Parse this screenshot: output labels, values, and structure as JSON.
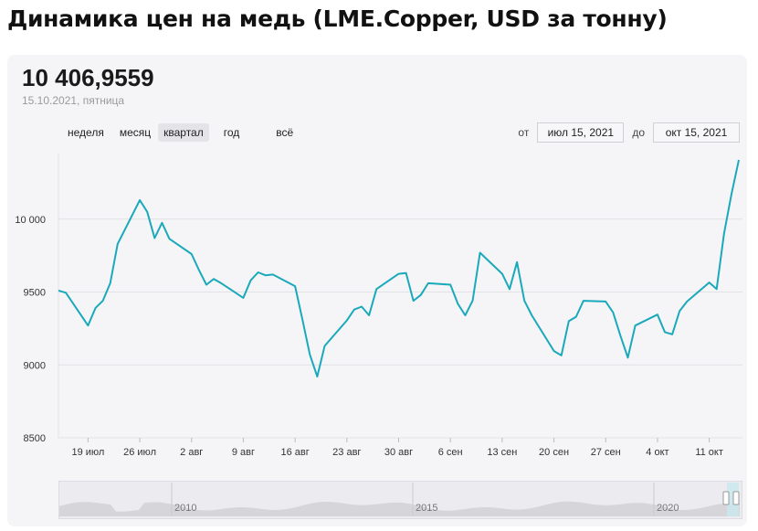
{
  "page": {
    "title": "Динамика цен на медь (LME.Copper, USD за тонну)"
  },
  "header": {
    "price": "10 406,9559",
    "date": "15.10.2021, пятница"
  },
  "tabs": [
    {
      "label": "неделя",
      "active": false
    },
    {
      "label": "месяц",
      "active": false
    },
    {
      "label": "квартал",
      "active": true
    },
    {
      "label": "год",
      "active": false
    },
    {
      "label": "всё",
      "active": false
    }
  ],
  "range": {
    "from_label": "от",
    "from_value": "июл 15, 2021",
    "to_label": "до",
    "to_value": "окт 15, 2021"
  },
  "navigator": {
    "year_labels": [
      "2010",
      "2015",
      "2020"
    ]
  },
  "colors": {
    "line": "#1aa9bb",
    "grid": "#e2e2e6",
    "navigator_fill": "#d6d6da"
  },
  "chart_data": {
    "type": "line",
    "title": "",
    "xlabel": "",
    "ylabel": "",
    "ylim": [
      8500,
      10450
    ],
    "yticks": [
      8500,
      9000,
      9500,
      10000
    ],
    "ytick_labels": [
      "8500",
      "9000",
      "9500",
      "10 000"
    ],
    "x_start": "2021-07-15",
    "x_end": "2021-10-15",
    "xticks": [
      {
        "date": "2021-07-19",
        "label": "19 июл"
      },
      {
        "date": "2021-07-26",
        "label": "26 июл"
      },
      {
        "date": "2021-08-02",
        "label": "2 авг"
      },
      {
        "date": "2021-08-09",
        "label": "9 авг"
      },
      {
        "date": "2021-08-16",
        "label": "16 авг"
      },
      {
        "date": "2021-08-23",
        "label": "23 авг"
      },
      {
        "date": "2021-08-30",
        "label": "30 авг"
      },
      {
        "date": "2021-09-06",
        "label": "6 сен"
      },
      {
        "date": "2021-09-13",
        "label": "13 сен"
      },
      {
        "date": "2021-09-20",
        "label": "20 сен"
      },
      {
        "date": "2021-09-27",
        "label": "27 сен"
      },
      {
        "date": "2021-10-04",
        "label": "4 окт"
      },
      {
        "date": "2021-10-11",
        "label": "11 окт"
      }
    ],
    "series": [
      {
        "points": [
          [
            "2021-07-15",
            9510
          ],
          [
            "2021-07-16",
            9495
          ],
          [
            "2021-07-19",
            9270
          ],
          [
            "2021-07-20",
            9390
          ],
          [
            "2021-07-21",
            9440
          ],
          [
            "2021-07-22",
            9560
          ],
          [
            "2021-07-23",
            9830
          ],
          [
            "2021-07-26",
            10130
          ],
          [
            "2021-07-27",
            10050
          ],
          [
            "2021-07-28",
            9870
          ],
          [
            "2021-07-29",
            9975
          ],
          [
            "2021-07-30",
            9865
          ],
          [
            "2021-08-02",
            9760
          ],
          [
            "2021-08-03",
            9650
          ],
          [
            "2021-08-04",
            9550
          ],
          [
            "2021-08-05",
            9590
          ],
          [
            "2021-08-06",
            9560
          ],
          [
            "2021-08-09",
            9460
          ],
          [
            "2021-08-10",
            9580
          ],
          [
            "2021-08-11",
            9635
          ],
          [
            "2021-08-12",
            9615
          ],
          [
            "2021-08-13",
            9620
          ],
          [
            "2021-08-16",
            9540
          ],
          [
            "2021-08-17",
            9310
          ],
          [
            "2021-08-18",
            9070
          ],
          [
            "2021-08-19",
            8920
          ],
          [
            "2021-08-20",
            9130
          ],
          [
            "2021-08-23",
            9305
          ],
          [
            "2021-08-24",
            9380
          ],
          [
            "2021-08-25",
            9400
          ],
          [
            "2021-08-26",
            9340
          ],
          [
            "2021-08-27",
            9520
          ],
          [
            "2021-08-30",
            9625
          ],
          [
            "2021-08-31",
            9630
          ],
          [
            "2021-09-01",
            9440
          ],
          [
            "2021-09-02",
            9480
          ],
          [
            "2021-09-03",
            9560
          ],
          [
            "2021-09-06",
            9550
          ],
          [
            "2021-09-07",
            9420
          ],
          [
            "2021-09-08",
            9340
          ],
          [
            "2021-09-09",
            9440
          ],
          [
            "2021-09-10",
            9770
          ],
          [
            "2021-09-13",
            9625
          ],
          [
            "2021-09-14",
            9520
          ],
          [
            "2021-09-15",
            9705
          ],
          [
            "2021-09-16",
            9440
          ],
          [
            "2021-09-17",
            9340
          ],
          [
            "2021-09-20",
            9095
          ],
          [
            "2021-09-21",
            9065
          ],
          [
            "2021-09-22",
            9300
          ],
          [
            "2021-09-23",
            9330
          ],
          [
            "2021-09-24",
            9440
          ],
          [
            "2021-09-27",
            9435
          ],
          [
            "2021-09-28",
            9360
          ],
          [
            "2021-09-29",
            9200
          ],
          [
            "2021-09-30",
            9050
          ],
          [
            "2021-10-01",
            9270
          ],
          [
            "2021-10-04",
            9345
          ],
          [
            "2021-10-05",
            9225
          ],
          [
            "2021-10-06",
            9210
          ],
          [
            "2021-10-07",
            9370
          ],
          [
            "2021-10-08",
            9435
          ],
          [
            "2021-10-11",
            9565
          ],
          [
            "2021-10-12",
            9520
          ],
          [
            "2021-10-13",
            9900
          ],
          [
            "2021-10-14",
            10170
          ],
          [
            "2021-10-15",
            10407
          ]
        ]
      }
    ]
  }
}
